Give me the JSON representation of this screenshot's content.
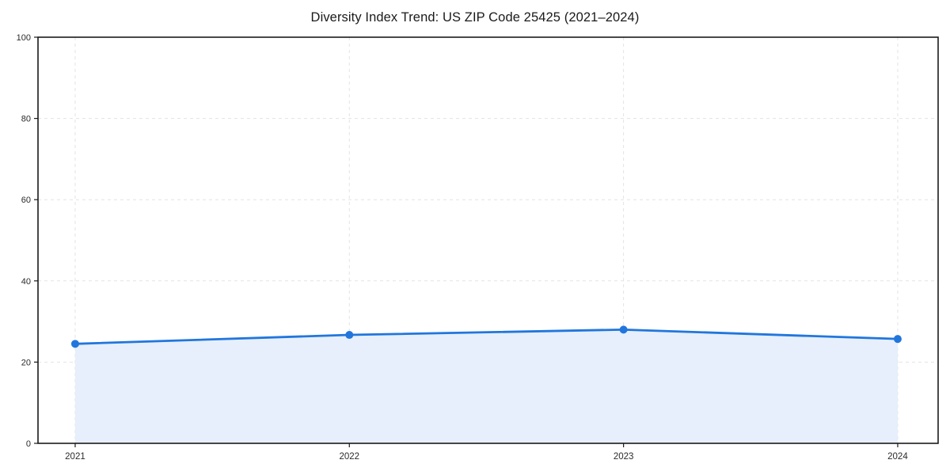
{
  "chart_data": {
    "type": "area",
    "title": "Diversity Index Trend: US ZIP Code 25425 (2021–2024)",
    "categories": [
      "2021",
      "2022",
      "2023",
      "2024"
    ],
    "x": [
      2021,
      2022,
      2023,
      2024
    ],
    "series": [
      {
        "name": "Diversity Index",
        "values": [
          24.5,
          26.7,
          28.0,
          25.7
        ]
      }
    ],
    "xlabel": "",
    "ylabel": "",
    "ylim": [
      0,
      100
    ],
    "yticks": [
      0,
      20,
      40,
      60,
      80,
      100
    ],
    "grid": "dashed, horizontal and vertical",
    "legend": "none",
    "colors": {
      "line": "#2176dd",
      "marker": "#2176dd",
      "area_fill": "#e6effb",
      "grid": "#e3e3e3",
      "spine": "#1a1a1a",
      "tick_label": "#2b2b2b",
      "background": "#ffffff"
    }
  }
}
